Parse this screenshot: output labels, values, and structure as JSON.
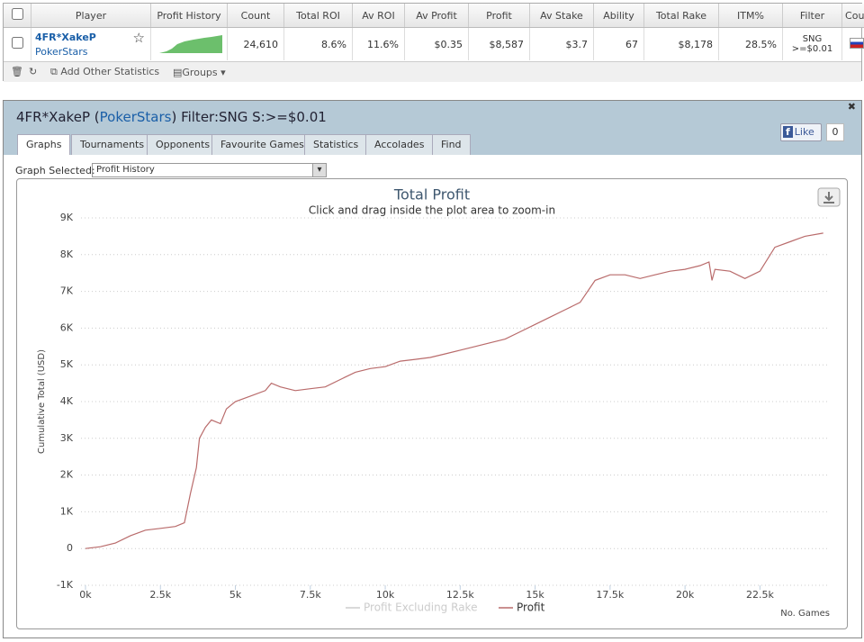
{
  "table": {
    "headers": [
      "Player",
      "Profit History",
      "Count",
      "Total ROI",
      "Av ROI",
      "Av Profit",
      "Profit",
      "Av Stake",
      "Ability",
      "Total Rake",
      "ITM%",
      "Filter",
      "Cour"
    ],
    "row": {
      "player": "4FR*XakeP",
      "site": "PokerStars",
      "stats": [
        "24,610",
        "8.6%",
        "11.6%",
        "$0.35",
        "$8,587",
        "$3.7",
        "67",
        "$8,178",
        "28.5%"
      ],
      "filter": [
        "SNG",
        ">=$0.01"
      ],
      "link": "x"
    }
  },
  "toolbar": {
    "add_stats": "Add Other Statistics",
    "groups": "Groups"
  },
  "panel": {
    "player": "4FR*XakeP",
    "site": "PokerStars",
    "filter": "Filter:SNG S:>=$0.01",
    "tabs": [
      "Graphs",
      "Tournaments",
      "Opponents",
      "Favourite Games",
      "Statistics",
      "Accolades",
      "Find"
    ],
    "graph_selected_label": "Graph Selected:",
    "graph_selected": "Profit History",
    "like": "Like",
    "like_count": "0"
  },
  "chart_data": {
    "type": "line",
    "title": "Total Profit",
    "subtitle": "Click and drag inside the plot area to zoom-in",
    "ylabel": "Cumulative Total (USD)",
    "xlabel": "No. Games",
    "x": [
      0,
      500,
      1000,
      1500,
      2000,
      2500,
      3000,
      3300,
      3500,
      3700,
      3800,
      4000,
      4200,
      4500,
      4700,
      5000,
      5500,
      6000,
      6200,
      6500,
      7000,
      7500,
      8000,
      8500,
      9000,
      9500,
      10000,
      10500,
      11000,
      11500,
      12000,
      12500,
      13000,
      13500,
      14000,
      14500,
      15000,
      15500,
      16000,
      16500,
      17000,
      17500,
      18000,
      18500,
      19000,
      19500,
      20000,
      20500,
      20800,
      20900,
      21000,
      21500,
      22000,
      22500,
      23000,
      23500,
      24000,
      24610
    ],
    "series": [
      {
        "name": "Profit Excluding Rake",
        "color": "#cccccc",
        "visible": false
      },
      {
        "name": "Profit",
        "color": "#b96b6b",
        "visible": true,
        "values": [
          0,
          50,
          150,
          350,
          500,
          550,
          600,
          700,
          1500,
          2200,
          3000,
          3300,
          3500,
          3400,
          3800,
          4000,
          4150,
          4300,
          4500,
          4400,
          4300,
          4350,
          4400,
          4600,
          4800,
          4900,
          4950,
          5100,
          5150,
          5200,
          5300,
          5400,
          5500,
          5600,
          5700,
          5900,
          6100,
          6300,
          6500,
          6700,
          7300,
          7450,
          7450,
          7350,
          7450,
          7550,
          7600,
          7700,
          7800,
          7300,
          7600,
          7550,
          7350,
          7550,
          8200,
          8350,
          8500,
          8587
        ]
      }
    ],
    "xlim": [
      -150,
      24800
    ],
    "ylim": [
      -1000,
      9000
    ],
    "xticks": [
      {
        "value": 0,
        "label": "0k"
      },
      {
        "value": 2500,
        "label": "2.5k"
      },
      {
        "value": 5000,
        "label": "5k"
      },
      {
        "value": 7500,
        "label": "7.5k"
      },
      {
        "value": 10000,
        "label": "10k"
      },
      {
        "value": 12500,
        "label": "12.5k"
      },
      {
        "value": 15000,
        "label": "15k"
      },
      {
        "value": 17500,
        "label": "17.5k"
      },
      {
        "value": 20000,
        "label": "20k"
      },
      {
        "value": 22500,
        "label": "22.5k"
      }
    ],
    "yticks": [
      {
        "value": -1000,
        "label": "-1K"
      },
      0,
      {
        "value": 1000,
        "label": "1K"
      },
      {
        "value": 2000,
        "label": "2K"
      },
      {
        "value": 3000,
        "label": "3K"
      },
      {
        "value": 4000,
        "label": "4K"
      },
      {
        "value": 5000,
        "label": "5K"
      },
      {
        "value": 6000,
        "label": "6K"
      },
      {
        "value": 7000,
        "label": "7K"
      },
      {
        "value": 8000,
        "label": "8K"
      },
      {
        "value": 9000,
        "label": "9K"
      }
    ],
    "grid": true
  }
}
